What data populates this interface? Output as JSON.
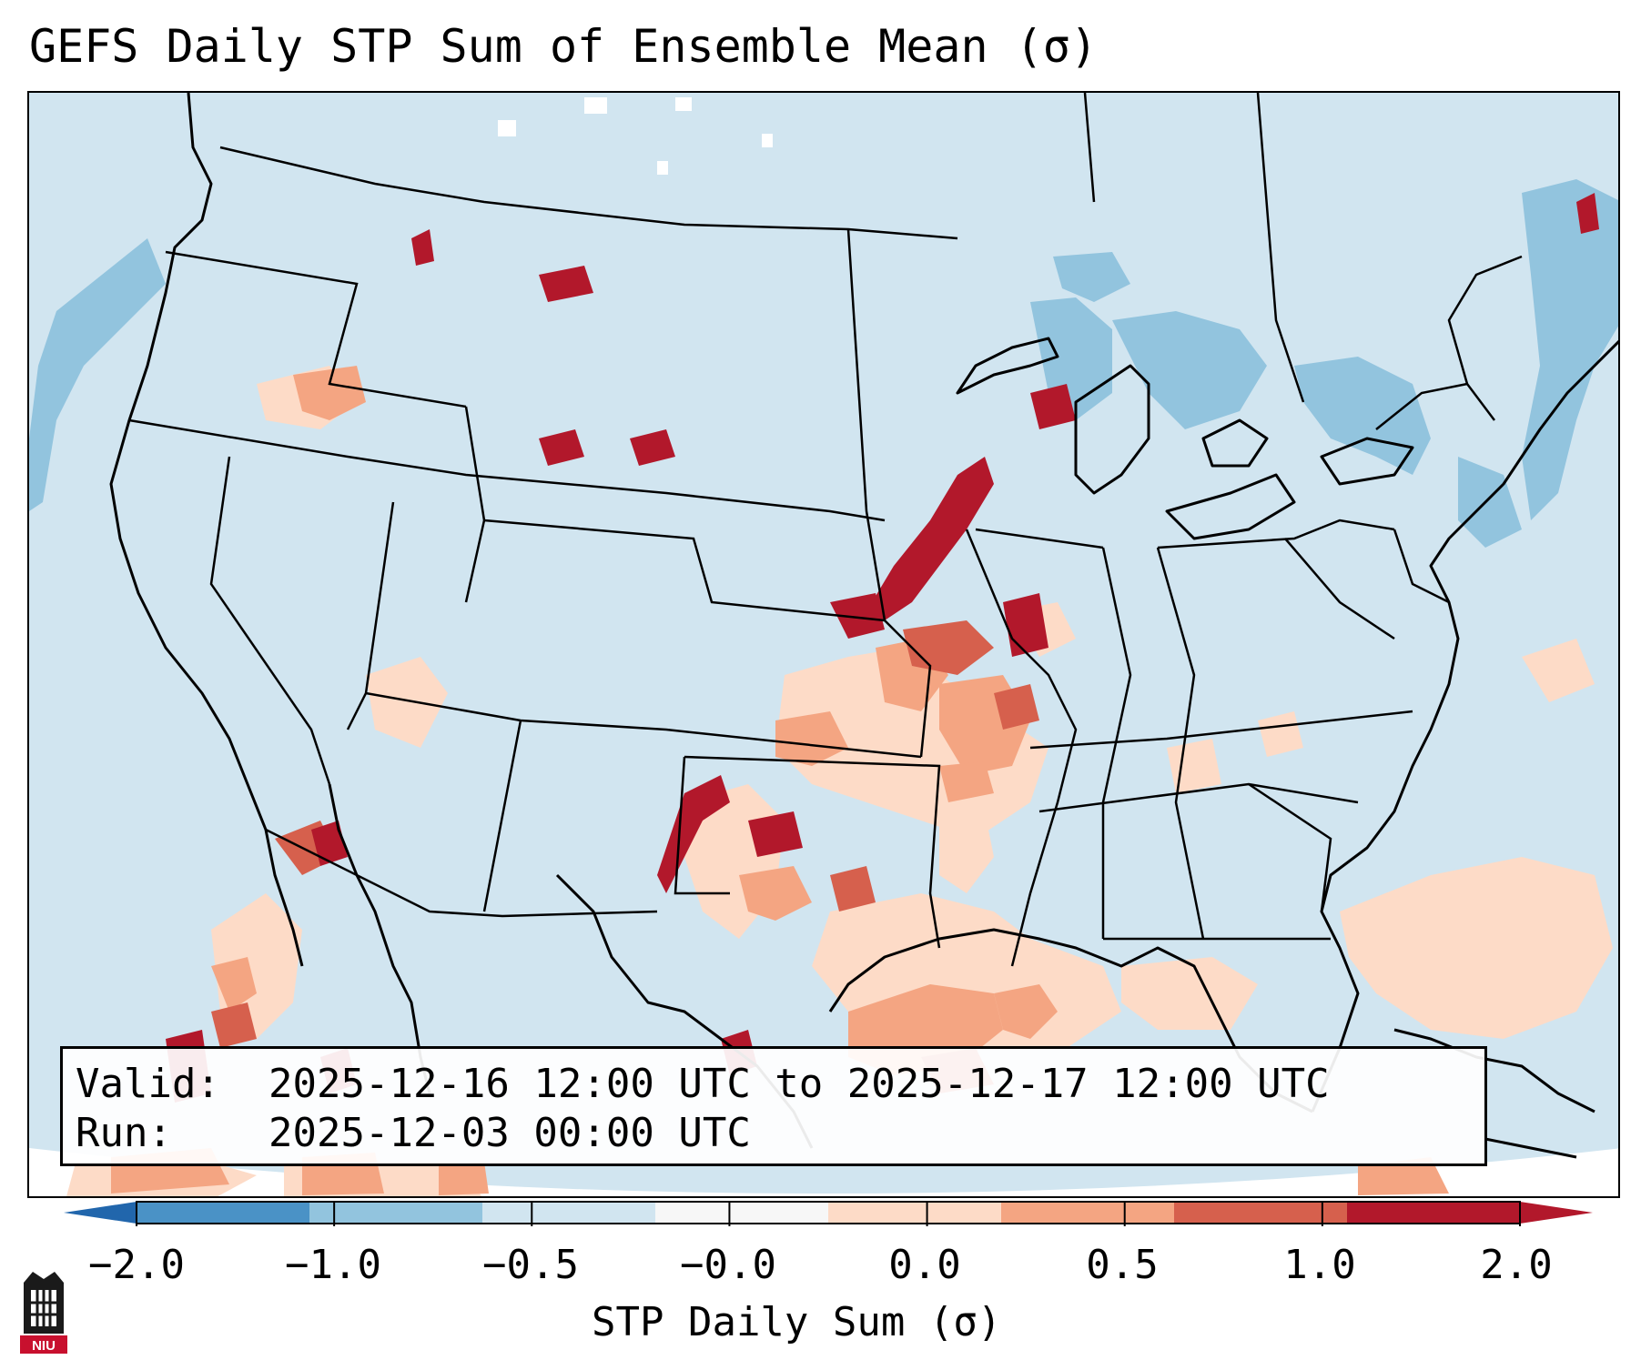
{
  "title": "GEFS Daily STP Sum of Ensemble Mean (σ)",
  "info": {
    "valid_label": "Valid:",
    "valid_value": "2025-12-16 12:00 UTC to 2025-12-17 12:00 UTC",
    "run_label": "Run:",
    "run_value": "2025-12-03 00:00 UTC"
  },
  "colorbar": {
    "label": "STP Daily Sum (σ)",
    "ticks": [
      "−2.0",
      "−1.0",
      "−0.5",
      "−0.0",
      "0.0",
      "0.5",
      "1.0",
      "2.0"
    ],
    "colors": [
      "#4a92c6",
      "#92c4de",
      "#d1e5f0",
      "#f7f7f7",
      "#fddbc7",
      "#f4a582",
      "#d6604d",
      "#b2182b"
    ]
  },
  "logo": {
    "text": "NIU"
  }
}
